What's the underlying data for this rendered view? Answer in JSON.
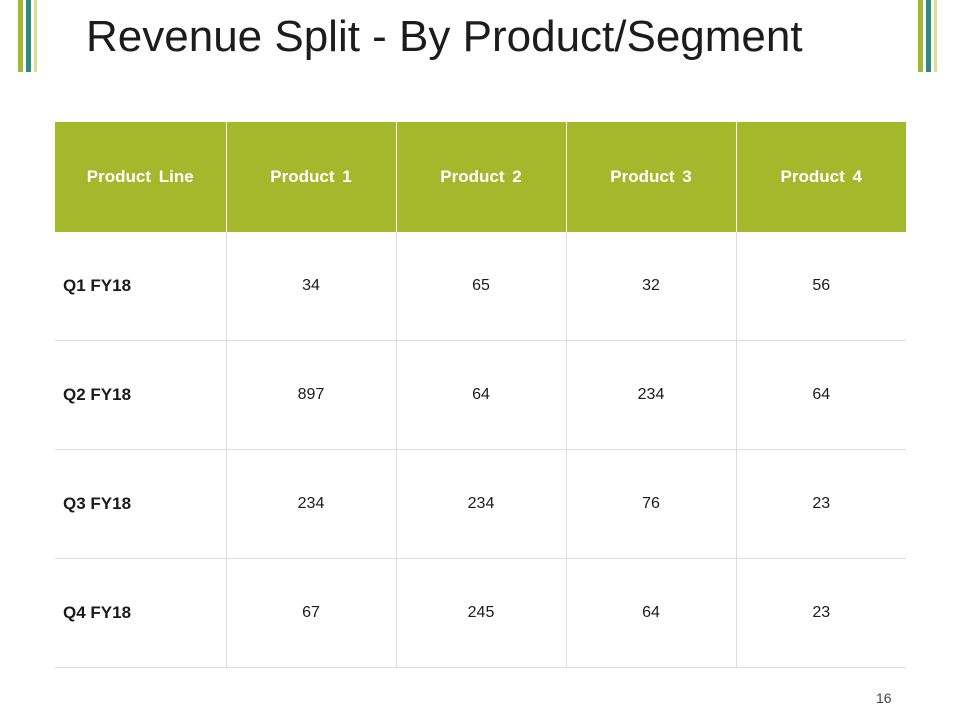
{
  "slide": {
    "title": "Revenue Split - By Product/Segment",
    "page_number": "16",
    "accent_color": "#a4b82c",
    "secondary_color": "#2e8b7e"
  },
  "table": {
    "headers": [
      "Product Line",
      "Product 1",
      "Product 2",
      "Product 3",
      "Product 4"
    ],
    "rows": [
      [
        "Q1 FY18",
        "34",
        "65",
        "32",
        "56"
      ],
      [
        "Q2 FY18",
        "897",
        "64",
        "234",
        "64"
      ],
      [
        "Q3 FY18",
        "234",
        "234",
        "76",
        "23"
      ],
      [
        "Q4 FY18",
        "67",
        "245",
        "64",
        "23"
      ]
    ]
  }
}
